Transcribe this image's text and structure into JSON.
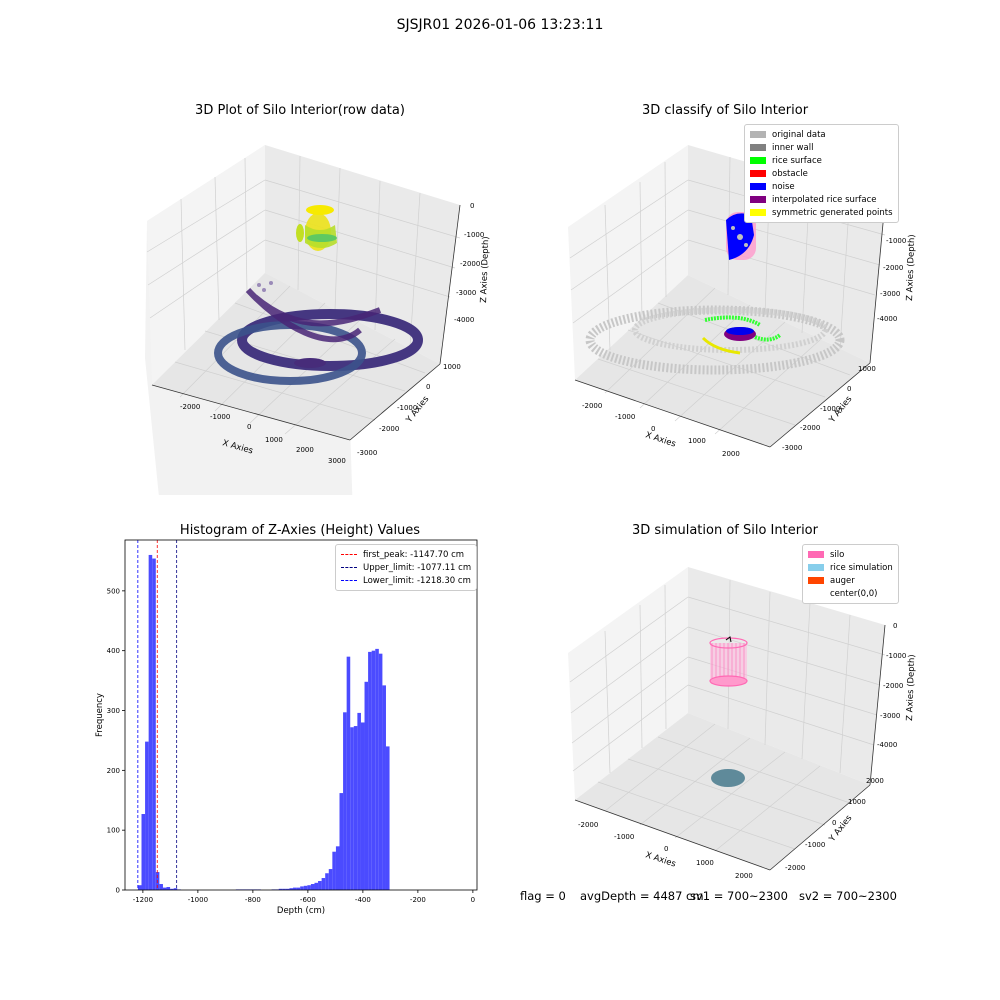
{
  "suptitle": "SJSJR01 2026-01-06 13:23:11",
  "status": {
    "flag": "flag = 0",
    "avg_depth": "avgDepth = 4487 cm",
    "sv1": "sv1 = 700~2300",
    "sv2": "sv2 = 700~2300"
  },
  "panels": {
    "raw": {
      "title": "3D Plot of Silo Interior(row data)",
      "xlabel": "X Axies",
      "ylabel": "Y Axies",
      "zlabel": "Z Axies (Depth)",
      "xticks": [
        "-2000",
        "-1000",
        "0",
        "1000",
        "2000",
        "3000"
      ],
      "yticks": [
        "1000",
        "0",
        "-1000",
        "-2000",
        "-3000"
      ],
      "zticks": [
        "0",
        "-1000",
        "-2000",
        "-3000",
        "-4000"
      ]
    },
    "classify": {
      "title": "3D classify of Silo Interior",
      "xlabel": "X Axies",
      "ylabel": "Y Axies",
      "zlabel": "Z Axies (Depth)",
      "xticks": [
        "-2000",
        "-1000",
        "0",
        "1000",
        "2000"
      ],
      "yticks": [
        "1000",
        "0",
        "-1000",
        "-2000",
        "-3000"
      ],
      "zticks": [
        "0",
        "-1000",
        "-2000",
        "-3000",
        "-4000"
      ],
      "legend": [
        {
          "label": "original data",
          "color": "#b3b3b3"
        },
        {
          "label": "inner wall",
          "color": "#808080"
        },
        {
          "label": "rice surface",
          "color": "#00ff00"
        },
        {
          "label": "obstacle",
          "color": "#ff0000"
        },
        {
          "label": "noise",
          "color": "#0000ff"
        },
        {
          "label": "interpolated rice surface",
          "color": "#800080"
        },
        {
          "label": "symmetric generated points",
          "color": "#ffff00"
        }
      ]
    },
    "simulation": {
      "title": "3D simulation of Silo Interior",
      "xlabel": "X Axies",
      "ylabel": "Y Axies",
      "zlabel": "Z Axies (Depth)",
      "xticks": [
        "-2000",
        "-1000",
        "0",
        "1000",
        "2000"
      ],
      "yticks": [
        "2000",
        "1000",
        "0",
        "-1000",
        "-2000"
      ],
      "zticks": [
        "0",
        "-1000",
        "-2000",
        "-3000",
        "-4000"
      ],
      "legend": [
        {
          "label": "silo",
          "color": "#ff69b4"
        },
        {
          "label": "rice simulation",
          "color": "#87ceeb"
        },
        {
          "label": "auger",
          "color": "#ff4500"
        },
        {
          "label": "center(0,0)",
          "color": "#ffffff"
        }
      ]
    }
  },
  "chart_data": {
    "type": "bar",
    "title": "Histogram of Z-Axies (Height) Values",
    "xlabel": "Depth (cm)",
    "ylabel": "Frequency",
    "xlim": [
      -1265,
      15
    ],
    "ylim": [
      0,
      585
    ],
    "xticks": [
      -1200,
      -1000,
      -800,
      -600,
      -400,
      -200,
      0
    ],
    "yticks": [
      0,
      100,
      200,
      300,
      400,
      500
    ],
    "bar_color": "#4b4bff",
    "bins": [
      [
        -1218,
        -1205,
        8
      ],
      [
        -1205,
        -1192,
        127
      ],
      [
        -1192,
        -1179,
        248
      ],
      [
        -1179,
        -1166,
        560
      ],
      [
        -1166,
        -1153,
        554
      ],
      [
        -1153,
        -1140,
        30
      ],
      [
        -1140,
        -1127,
        10
      ],
      [
        -1127,
        -1114,
        4
      ],
      [
        -1114,
        -1101,
        5
      ],
      [
        -1101,
        -1088,
        2
      ],
      [
        -1088,
        -1075,
        3
      ],
      [
        -1075,
        -1062,
        1
      ],
      [
        -862,
        -849,
        1
      ],
      [
        -849,
        -836,
        1
      ],
      [
        -836,
        -823,
        1
      ],
      [
        -823,
        -810,
        1
      ],
      [
        -810,
        -797,
        1
      ],
      [
        -797,
        -784,
        1
      ],
      [
        -784,
        -771,
        1
      ],
      [
        -732,
        -719,
        1
      ],
      [
        -719,
        -706,
        1
      ],
      [
        -706,
        -693,
        2
      ],
      [
        -693,
        -680,
        2
      ],
      [
        -680,
        -667,
        2
      ],
      [
        -667,
        -654,
        3
      ],
      [
        -654,
        -641,
        4
      ],
      [
        -641,
        -628,
        4
      ],
      [
        -628,
        -615,
        6
      ],
      [
        -615,
        -602,
        7
      ],
      [
        -602,
        -589,
        8
      ],
      [
        -589,
        -576,
        10
      ],
      [
        -576,
        -563,
        12
      ],
      [
        -563,
        -550,
        15
      ],
      [
        -550,
        -537,
        20
      ],
      [
        -537,
        -524,
        28
      ],
      [
        -524,
        -511,
        35
      ],
      [
        -511,
        -498,
        64
      ],
      [
        -498,
        -485,
        73
      ],
      [
        -485,
        -472,
        162
      ],
      [
        -472,
        -459,
        297
      ],
      [
        -459,
        -446,
        390
      ],
      [
        -446,
        -433,
        272
      ],
      [
        -433,
        -420,
        274
      ],
      [
        -420,
        -407,
        296
      ],
      [
        -407,
        -394,
        280
      ],
      [
        -394,
        -381,
        348
      ],
      [
        -381,
        -368,
        398
      ],
      [
        -368,
        -355,
        400
      ],
      [
        -355,
        -342,
        403
      ],
      [
        -342,
        -329,
        395
      ],
      [
        -329,
        -316,
        342
      ],
      [
        -316,
        -303,
        240
      ]
    ],
    "lines": [
      {
        "label": "first_peak: -1147.70 cm",
        "x": -1147.7,
        "color": "#ff0000"
      },
      {
        "label": "Upper_limit: -1077.11 cm",
        "x": -1077.11,
        "color": "#000080"
      },
      {
        "label": "Lower_limit: -1218.30 cm",
        "x": -1218.3,
        "color": "#0000ff"
      }
    ]
  }
}
